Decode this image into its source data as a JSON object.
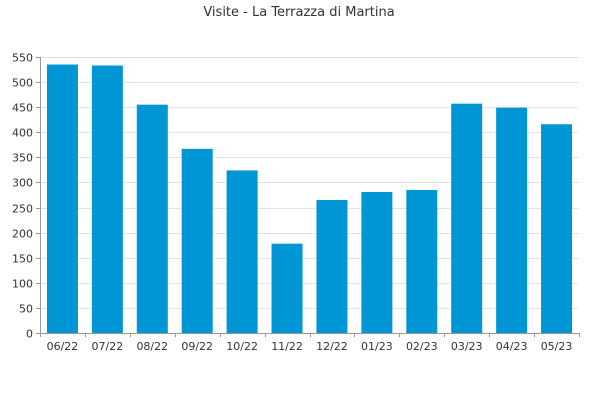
{
  "chart_data": {
    "type": "bar",
    "title": "Visite - La Terrazza di Martina",
    "xlabel": "",
    "ylabel": "",
    "categories": [
      "06/22",
      "07/22",
      "08/22",
      "09/22",
      "10/22",
      "11/22",
      "12/22",
      "01/23",
      "02/23",
      "03/23",
      "04/23",
      "05/23"
    ],
    "values": [
      535,
      533,
      455,
      367,
      324,
      178,
      265,
      281,
      285,
      457,
      449,
      416
    ],
    "ylim": [
      0,
      550
    ],
    "yticks": [
      "0",
      "50",
      "100",
      "150",
      "200",
      "250",
      "300",
      "350",
      "400",
      "450",
      "500",
      "550"
    ],
    "grid": true,
    "legend": "none",
    "bar_color": "#0096d6"
  }
}
